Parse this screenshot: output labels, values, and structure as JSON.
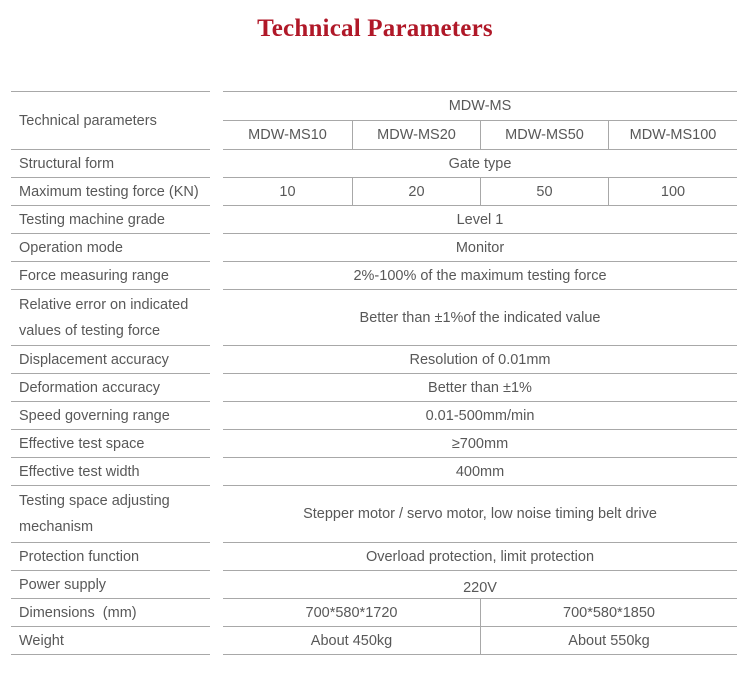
{
  "page": {
    "title": "Technical Parameters"
  },
  "colors": {
    "title_red": "#b01828",
    "border_gray": "#a8a8a8",
    "text_gray": "#585858"
  },
  "table": {
    "header": {
      "label": "Technical parameters",
      "series": "MDW-MS",
      "models": [
        "MDW-MS10",
        "MDW-MS20",
        "MDW-MS50",
        "MDW-MS100"
      ]
    },
    "rows": [
      {
        "label": "Structural form",
        "value": "Gate type"
      },
      {
        "label": "Maximum testing force (KN)",
        "values": [
          "10",
          "20",
          "50",
          "100"
        ]
      },
      {
        "label": "Testing machine grade",
        "value": "Level 1"
      },
      {
        "label": "Operation mode",
        "value": "Monitor"
      },
      {
        "label": "Force measuring range",
        "value": "2%-100% of the maximum testing force"
      },
      {
        "label": "Relative error on indicated\nvalues of testing force",
        "value": "Better than ±1%of the indicated value"
      },
      {
        "label": "Displacement accuracy",
        "value": "Resolution of 0.01mm"
      },
      {
        "label": "Deformation accuracy",
        "value": "Better than ±1%"
      },
      {
        "label": "Speed governing range",
        "value": "0.01-500mm/min"
      },
      {
        "label": "Effective test space",
        "value": "≥700mm"
      },
      {
        "label": "Effective test width",
        "value": "400mm"
      },
      {
        "label": "Testing space adjusting\nmechanism",
        "value": "Stepper motor / servo motor, low noise timing belt drive"
      },
      {
        "label": "Protection function",
        "value": "Overload protection, limit protection"
      },
      {
        "label": "Power supply",
        "value": "220V"
      },
      {
        "label": "Dimensions  (mm)",
        "values_half": [
          "700*580*1720",
          "700*580*1850"
        ]
      },
      {
        "label": "Weight",
        "values_half": [
          "About 450kg",
          "About 550kg"
        ]
      }
    ]
  }
}
